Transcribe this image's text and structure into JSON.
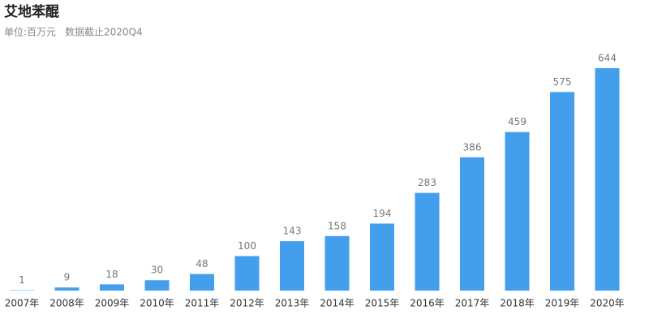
{
  "chart_data": {
    "type": "bar",
    "title": "艾地苯醌",
    "subtitle": "单位:百万元",
    "note": "数据截止2020Q4",
    "categories": [
      "2007年",
      "2008年",
      "2009年",
      "2010年",
      "2011年",
      "2012年",
      "2013年",
      "2014年",
      "2015年",
      "2016年",
      "2017年",
      "2018年",
      "2019年",
      "2020年"
    ],
    "values": [
      1,
      9,
      18,
      30,
      48,
      100,
      143,
      158,
      194,
      283,
      386,
      459,
      575,
      644
    ],
    "color": "#439fec"
  }
}
